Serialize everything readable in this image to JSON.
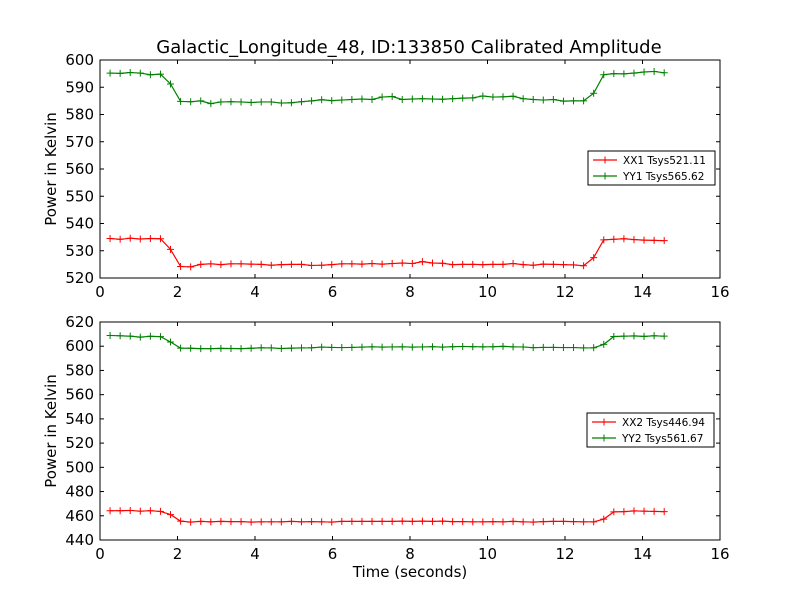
{
  "title": "Galactic_Longitude_48, ID:133850 Calibrated Amplitude",
  "chart_data": [
    {
      "type": "line",
      "title": "Galactic_Longitude_48, ID:133850 Calibrated Amplitude",
      "xlabel": "",
      "ylabel": "Power in Kelvin",
      "xlim": [
        0,
        16
      ],
      "ylim": [
        520,
        600
      ],
      "xticks": [
        0,
        2,
        4,
        6,
        8,
        10,
        12,
        14,
        16
      ],
      "yticks": [
        520,
        530,
        540,
        550,
        560,
        570,
        580,
        590,
        600
      ],
      "grid": false,
      "legend_position": "right",
      "x": [
        0.26,
        0.52,
        0.78,
        1.04,
        1.3,
        1.56,
        1.82,
        2.08,
        2.34,
        2.6,
        2.86,
        3.12,
        3.38,
        3.64,
        3.9,
        4.16,
        4.42,
        4.68,
        4.94,
        5.2,
        5.46,
        5.72,
        5.98,
        6.24,
        6.5,
        6.76,
        7.02,
        7.28,
        7.54,
        7.8,
        8.06,
        8.32,
        8.58,
        8.84,
        9.1,
        9.36,
        9.62,
        9.88,
        10.14,
        10.4,
        10.66,
        10.92,
        11.18,
        11.44,
        11.7,
        11.96,
        12.22,
        12.48,
        12.74,
        13.0,
        13.26,
        13.52,
        13.78,
        14.04,
        14.3,
        14.56
      ],
      "series": [
        {
          "name": "XX1 Tsys521.11",
          "color": "#ff0000",
          "values": [
            534.5,
            534.2,
            534.6,
            534.3,
            534.5,
            534.4,
            530.5,
            524.2,
            524.1,
            525.0,
            525.2,
            524.9,
            525.2,
            525.2,
            525.1,
            525.0,
            524.7,
            524.9,
            525.0,
            525.0,
            524.6,
            524.7,
            524.9,
            525.2,
            525.2,
            525.1,
            525.3,
            525.1,
            525.3,
            525.5,
            525.3,
            526.0,
            525.5,
            525.4,
            524.9,
            525.0,
            525.0,
            524.9,
            525.0,
            525.0,
            525.3,
            524.9,
            524.7,
            525.1,
            525.0,
            524.9,
            524.8,
            524.5,
            527.5,
            534.0,
            534.2,
            534.4,
            534.1,
            533.9,
            533.8,
            533.7
          ]
        },
        {
          "name": "YY1 Tsys565.62",
          "color": "#008000",
          "values": [
            595.2,
            595.1,
            595.4,
            595.2,
            594.6,
            594.8,
            591.2,
            584.8,
            584.7,
            585.0,
            584.0,
            584.6,
            584.7,
            584.6,
            584.4,
            584.6,
            584.6,
            584.2,
            584.3,
            584.7,
            585.0,
            585.4,
            585.1,
            585.3,
            585.5,
            585.7,
            585.5,
            586.4,
            586.6,
            585.5,
            585.7,
            585.8,
            585.7,
            585.6,
            585.8,
            586.0,
            586.1,
            586.8,
            586.4,
            586.5,
            586.7,
            585.8,
            585.5,
            585.3,
            585.5,
            584.9,
            585.0,
            585.0,
            587.8,
            594.6,
            595.0,
            594.9,
            595.2,
            595.6,
            595.8,
            595.3
          ]
        }
      ]
    },
    {
      "type": "line",
      "title": "",
      "xlabel": "Time (seconds)",
      "ylabel": "Power in Kelvin",
      "xlim": [
        0,
        16
      ],
      "ylim": [
        440,
        620
      ],
      "xticks": [
        0,
        2,
        4,
        6,
        8,
        10,
        12,
        14,
        16
      ],
      "yticks": [
        440,
        460,
        480,
        500,
        520,
        540,
        560,
        580,
        600,
        620
      ],
      "grid": false,
      "legend_position": "right",
      "x": [
        0.26,
        0.52,
        0.78,
        1.04,
        1.3,
        1.56,
        1.82,
        2.08,
        2.34,
        2.6,
        2.86,
        3.12,
        3.38,
        3.64,
        3.9,
        4.16,
        4.42,
        4.68,
        4.94,
        5.2,
        5.46,
        5.72,
        5.98,
        6.24,
        6.5,
        6.76,
        7.02,
        7.28,
        7.54,
        7.8,
        8.06,
        8.32,
        8.58,
        8.84,
        9.1,
        9.36,
        9.62,
        9.88,
        10.14,
        10.4,
        10.66,
        10.92,
        11.18,
        11.44,
        11.7,
        11.96,
        12.22,
        12.48,
        12.74,
        13.0,
        13.26,
        13.52,
        13.78,
        14.04,
        14.3,
        14.56
      ],
      "series": [
        {
          "name": "XX2 Tsys446.94",
          "color": "#ff0000",
          "values": [
            464.2,
            464.2,
            464.4,
            463.8,
            464.2,
            463.6,
            461.0,
            455.6,
            454.8,
            455.4,
            455.0,
            455.4,
            455.2,
            455.2,
            454.8,
            455.0,
            455.0,
            455.0,
            455.4,
            455.0,
            455.2,
            455.0,
            454.8,
            455.4,
            455.4,
            455.4,
            455.4,
            455.4,
            455.4,
            455.6,
            455.4,
            455.6,
            455.4,
            455.6,
            455.2,
            455.2,
            455.0,
            455.0,
            455.2,
            455.0,
            455.4,
            455.0,
            454.8,
            455.2,
            455.4,
            455.4,
            455.2,
            455.0,
            455.0,
            457.2,
            463.2,
            463.4,
            464.0,
            463.8,
            463.6,
            463.4
          ]
        },
        {
          "name": "YY2 Tsys561.67",
          "color": "#008000",
          "values": [
            608.9,
            608.6,
            608.3,
            607.5,
            608.2,
            607.9,
            603.5,
            598.4,
            598.3,
            598.0,
            598.0,
            598.2,
            598.1,
            598.0,
            598.3,
            598.7,
            598.6,
            598.1,
            598.4,
            598.6,
            598.7,
            599.3,
            599.0,
            598.9,
            599.0,
            599.3,
            599.5,
            599.3,
            599.4,
            599.5,
            599.3,
            599.4,
            599.6,
            599.3,
            599.6,
            599.8,
            599.6,
            599.5,
            599.6,
            599.9,
            599.5,
            599.4,
            598.8,
            599.0,
            599.0,
            598.9,
            598.9,
            598.6,
            598.7,
            601.5,
            608.0,
            608.3,
            608.5,
            608.1,
            608.6,
            608.3
          ]
        }
      ]
    }
  ]
}
